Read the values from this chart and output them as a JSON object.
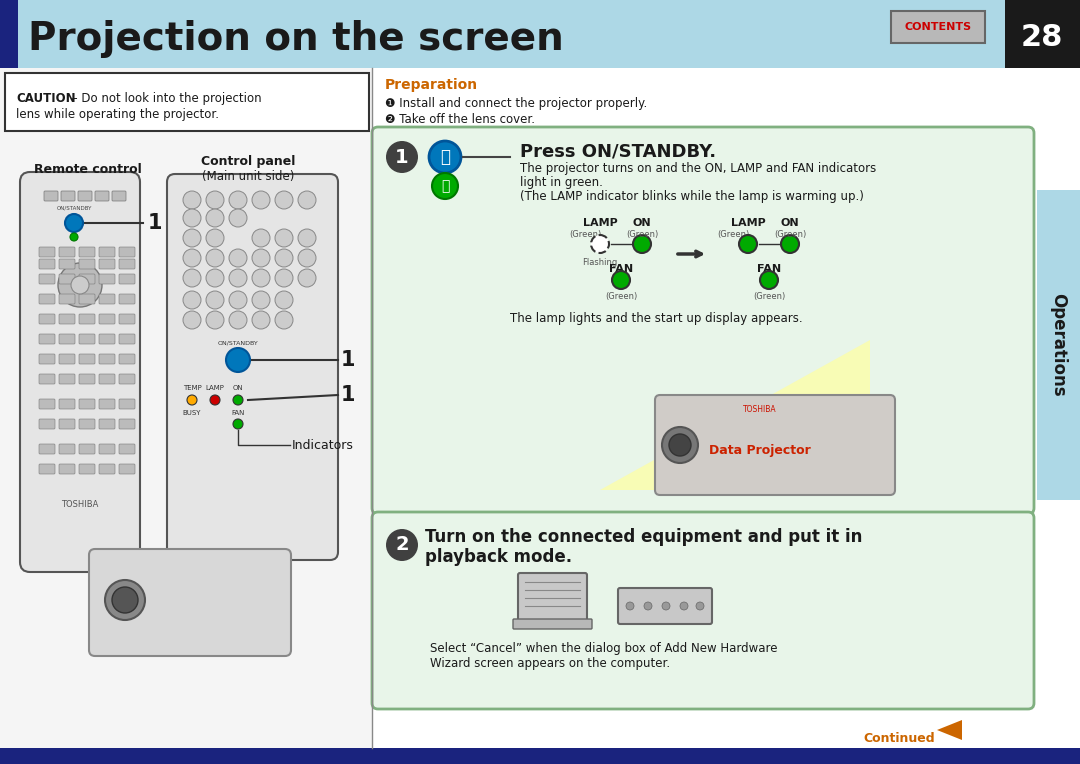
{
  "title": "Projection on the screen",
  "page_number": "28",
  "header_bg": "#add8e6",
  "header_accent": "#1a237e",
  "title_color": "#1a1a1a",
  "title_fontsize": 28,
  "contents_label": "CONTENTS",
  "contents_color": "#cc0000",
  "right_tab_text": "Operations",
  "right_tab_color": "#1a1a1a",
  "caution_bold": "CAUTION",
  "caution_rest": " – Do not look into the projection",
  "caution_line2": "lens while operating the projector.",
  "preparation_title": "Preparation",
  "preparation_color": "#cc6600",
  "prep_step1": "❶ Install and connect the projector properly.",
  "prep_step2": "❷ Take off the lens cover.",
  "step1_number": "1",
  "step1_title": "Press ON/STANDBY.",
  "step1_desc1": "The projector turns on and the ON, LAMP and FAN indicators",
  "step1_desc2": "light in green.",
  "step1_desc3": "(The LAMP indicator blinks while the lamp is warming up.)",
  "step1_bg": "#e8f5e9",
  "step1_border": "#80b080",
  "lamp_lights_text": "The lamp lights and the start up display appears.",
  "step2_number": "2",
  "step2_title1": "Turn on the connected equipment and put it in",
  "step2_title2": "playback mode.",
  "step2_bg": "#e8f5e9",
  "step2_border": "#80b080",
  "step2_desc1": "Select “Cancel” when the dialog box of Add New Hardware",
  "step2_desc2": "Wizard screen appears on the computer.",
  "continued_text": "Continued",
  "continued_color": "#cc6600",
  "remote_control_label": "Remote control",
  "control_panel_label": "Control panel",
  "main_unit_side": "(Main unit side)",
  "indicators_label": "Indicators",
  "bottom_bar_color": "#1a237e",
  "page_bg": "#ffffff",
  "left_panel_bg": "#f5f5f5",
  "green_color": "#00aa00",
  "blue_btn_color": "#0077bb",
  "dark_btn_color": "#333333"
}
